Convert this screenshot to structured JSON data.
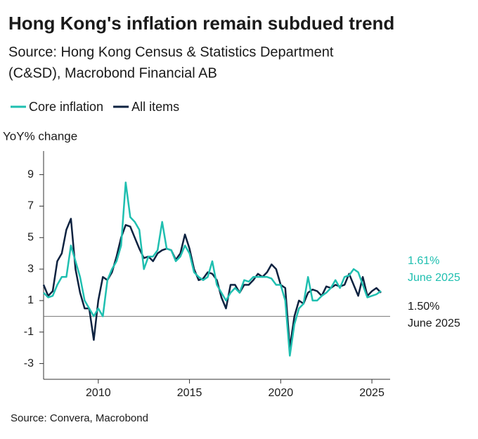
{
  "chart_data": {
    "type": "line",
    "title": "Hong Kong's inflation remain subdued trend",
    "subtitle_lines": [
      "Source: Hong Kong Census & Statistics Department",
      "(C&SD), Macrobond Financial AB"
    ],
    "y_label": "YoY% change",
    "footer": "Source: Convera, Macrobond",
    "xlim": [
      2007,
      2026
    ],
    "xticks": [
      2010,
      2015,
      2020,
      2025
    ],
    "ylim": [
      -4,
      10.5
    ],
    "yticks": [
      -3,
      -1,
      1,
      3,
      5,
      7,
      9
    ],
    "x": [
      2007,
      2007.25,
      2007.5,
      2007.75,
      2008,
      2008.25,
      2008.5,
      2008.75,
      2009,
      2009.25,
      2009.5,
      2009.75,
      2010,
      2010.25,
      2010.5,
      2010.75,
      2011,
      2011.25,
      2011.5,
      2011.75,
      2012,
      2012.25,
      2012.5,
      2012.75,
      2013,
      2013.25,
      2013.5,
      2013.75,
      2014,
      2014.25,
      2014.5,
      2014.75,
      2015,
      2015.25,
      2015.5,
      2015.75,
      2016,
      2016.25,
      2016.5,
      2016.75,
      2017,
      2017.25,
      2017.5,
      2017.75,
      2018,
      2018.25,
      2018.5,
      2018.75,
      2019,
      2019.25,
      2019.5,
      2019.75,
      2020,
      2020.25,
      2020.5,
      2020.75,
      2021,
      2021.25,
      2021.5,
      2021.75,
      2022,
      2022.25,
      2022.5,
      2022.75,
      2023,
      2023.25,
      2023.5,
      2023.75,
      2024,
      2024.25,
      2024.5,
      2024.75,
      2025,
      2025.25,
      2025.5
    ],
    "series": [
      {
        "name": "Core inflation",
        "color": "#1fbfb0",
        "values": [
          1.5,
          1.2,
          1.3,
          2.0,
          2.5,
          2.5,
          4.5,
          3.5,
          2.5,
          1.0,
          0.5,
          0.0,
          0.5,
          0.0,
          2.3,
          3.0,
          3.5,
          4.5,
          8.5,
          6.3,
          6.0,
          5.5,
          3.0,
          3.8,
          3.8,
          4.2,
          6.0,
          4.3,
          4.2,
          3.5,
          3.8,
          4.5,
          4.0,
          2.8,
          2.5,
          2.3,
          2.5,
          3.5,
          2.0,
          1.5,
          1.0,
          1.5,
          1.8,
          1.5,
          2.3,
          2.2,
          2.5,
          2.5,
          2.5,
          2.5,
          2.4,
          2.0,
          2.0,
          1.0,
          -2.5,
          -0.5,
          0.5,
          0.8,
          2.5,
          1.0,
          1.0,
          1.3,
          1.5,
          1.8,
          2.3,
          1.8,
          2.5,
          2.6,
          3.0,
          2.8,
          2.0,
          1.2,
          1.3,
          1.4,
          1.61
        ]
      },
      {
        "name": "All items",
        "color": "#0d2240",
        "values": [
          2.0,
          1.3,
          1.6,
          3.5,
          4.0,
          5.5,
          6.2,
          3.0,
          1.5,
          0.5,
          0.5,
          -1.5,
          1.0,
          2.5,
          2.3,
          2.8,
          3.8,
          5.0,
          5.8,
          5.7,
          5.0,
          4.3,
          3.7,
          3.8,
          3.5,
          4.0,
          4.2,
          4.3,
          4.2,
          3.6,
          4.0,
          5.2,
          4.3,
          3.0,
          2.3,
          2.4,
          2.8,
          2.7,
          2.3,
          1.2,
          0.5,
          2.0,
          2.0,
          1.5,
          2.0,
          2.0,
          2.3,
          2.7,
          2.5,
          2.8,
          3.3,
          3.0,
          2.0,
          1.8,
          -2.0,
          0.0,
          1.0,
          0.8,
          1.5,
          1.7,
          1.6,
          1.3,
          1.9,
          1.8,
          2.0,
          1.9,
          2.0,
          2.7,
          2.0,
          1.3,
          2.5,
          1.3,
          1.6,
          1.8,
          1.5
        ]
      }
    ],
    "annotations": [
      {
        "lines": [
          "1.61%",
          "June 2025"
        ],
        "color": "#1fbfb0"
      },
      {
        "lines": [
          "1.50%",
          "June 2025"
        ],
        "color": "#1a1a1a"
      }
    ]
  }
}
